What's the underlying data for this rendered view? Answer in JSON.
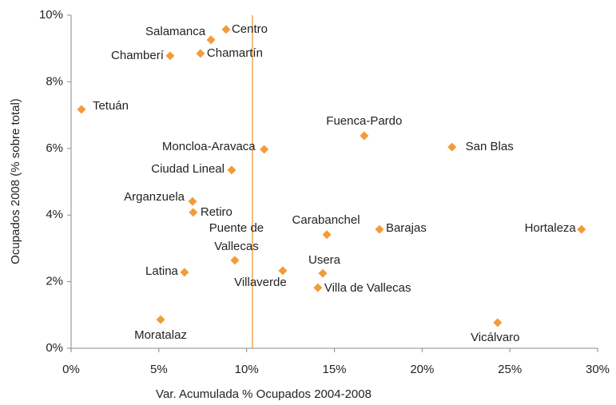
{
  "chart_data": {
    "type": "scatter",
    "x_label": "Var. Acumulada % Ocupados 2004-2008",
    "y_label": "Ocupados 2008 (% sobre total)",
    "color": "#f29b38",
    "labels": [
      "Centro",
      "Salamanca",
      "Chamberí",
      "Chamartín",
      "Tetuán",
      "Fuenca-Pardo",
      "San Blas",
      "Moncloa-Aravaca",
      "Ciudad Lineal",
      "Arganzuela",
      "Retiro",
      "Carabanchel",
      "Barajas",
      "Hortaleza",
      "Puente de Vallecas",
      "Latina",
      "Villaverde",
      "Usera",
      "Villa de Vallecas",
      "Moratalaz",
      "Vicálvaro"
    ],
    "x": [
      8.83,
      7.97,
      5.64,
      7.37,
      0.59,
      16.7,
      21.7,
      11.0,
      9.15,
      6.92,
      6.96,
      14.57,
      17.57,
      29.08,
      9.33,
      6.46,
      12.06,
      14.34,
      14.06,
      5.1,
      24.3
    ],
    "values": [
      9.57,
      9.26,
      8.78,
      8.85,
      7.17,
      6.38,
      6.04,
      5.97,
      5.35,
      4.41,
      4.08,
      3.41,
      3.57,
      3.57,
      2.64,
      2.28,
      2.33,
      2.25,
      1.82,
      0.86,
      0.77
    ],
    "reference_line": {
      "x": 10.33,
      "color": "#f29b38"
    },
    "xlim": [
      0,
      30
    ],
    "xticks": [
      {
        "value": 0,
        "label": "0%"
      },
      {
        "value": 5,
        "label": "5%"
      },
      {
        "value": 10,
        "label": "10%"
      },
      {
        "value": 15,
        "label": "15%"
      },
      {
        "value": 20,
        "label": "20%"
      },
      {
        "value": 25,
        "label": "25%"
      },
      {
        "value": 30,
        "label": "30%"
      }
    ],
    "ylim": [
      0,
      10
    ],
    "yticks": [
      {
        "value": 0,
        "label": "0%"
      },
      {
        "value": 2,
        "label": "2%"
      },
      {
        "value": 4,
        "label": "4%"
      },
      {
        "value": 6,
        "label": "6%"
      },
      {
        "value": 8,
        "label": "8%"
      },
      {
        "value": 10,
        "label": "10%"
      }
    ]
  }
}
